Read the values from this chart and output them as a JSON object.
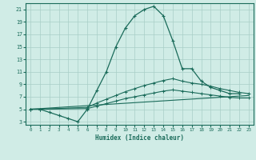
{
  "xlabel": "Humidex (Indice chaleur)",
  "bg_color": "#d0ece6",
  "grid_color": "#a8cfc7",
  "line_color": "#1a6b5a",
  "xlim": [
    -0.5,
    23.5
  ],
  "ylim": [
    2.5,
    22
  ],
  "xticks": [
    0,
    1,
    2,
    3,
    4,
    5,
    6,
    7,
    8,
    9,
    10,
    11,
    12,
    13,
    14,
    15,
    16,
    17,
    18,
    19,
    20,
    21,
    22,
    23
  ],
  "yticks": [
    3,
    5,
    7,
    9,
    11,
    13,
    15,
    17,
    19,
    21
  ],
  "main_x": [
    0,
    1,
    2,
    3,
    4,
    5,
    6,
    7,
    8,
    9,
    10,
    11,
    12,
    13,
    14,
    15,
    16,
    17,
    18,
    19,
    20,
    21,
    22
  ],
  "main_y": [
    5,
    5,
    4.5,
    4,
    3.5,
    3,
    5,
    8,
    11,
    15,
    18,
    20,
    21,
    21.5,
    20,
    16,
    11.5,
    11.5,
    9.5,
    8.5,
    8,
    7.5,
    7.5
  ],
  "line2_x": [
    0,
    1,
    6,
    7,
    8,
    9,
    10,
    11,
    12,
    13,
    14,
    15,
    16,
    17,
    18,
    19,
    20,
    21,
    22,
    23
  ],
  "line2_y": [
    5,
    5,
    5.3,
    6.0,
    6.6,
    7.2,
    7.8,
    8.3,
    8.8,
    9.2,
    9.6,
    9.9,
    9.5,
    9.2,
    9.0,
    8.7,
    8.3,
    8.0,
    7.7,
    7.5
  ],
  "line3_x": [
    0,
    1,
    6,
    7,
    8,
    9,
    10,
    11,
    12,
    13,
    14,
    15,
    16,
    17,
    18,
    19,
    20,
    21,
    22,
    23
  ],
  "line3_y": [
    5,
    5,
    5.1,
    5.5,
    5.9,
    6.3,
    6.7,
    7.0,
    7.3,
    7.6,
    7.9,
    8.1,
    7.9,
    7.7,
    7.5,
    7.3,
    7.1,
    6.9,
    6.8,
    6.8
  ],
  "line4_x": [
    0,
    23
  ],
  "line4_y": [
    5,
    7.2
  ]
}
